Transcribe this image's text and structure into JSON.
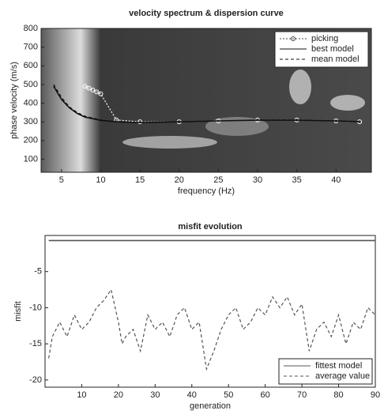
{
  "chart_data": [
    {
      "type": "line",
      "title": "velocity spectrum & dispersion curve",
      "xlabel": "frequency (Hz)",
      "ylabel": "phase velocity (m/s)",
      "xlim": [
        2.4,
        44.5
      ],
      "ylim": [
        30,
        800
      ],
      "xticks": [
        5,
        10,
        15,
        20,
        25,
        30,
        35,
        40
      ],
      "yticks": [
        100,
        200,
        300,
        400,
        500,
        600,
        700,
        800
      ],
      "legend": "upper right",
      "series": [
        {
          "name": "picking",
          "color": "#ffffff",
          "style": "marker",
          "x": [
            8,
            8.5,
            9,
            9.5,
            10,
            12,
            15,
            20,
            25,
            30,
            35,
            40,
            43
          ],
          "values": [
            490,
            480,
            470,
            460,
            450,
            310,
            300,
            300,
            305,
            310,
            310,
            305,
            300
          ]
        },
        {
          "name": "best model",
          "color": "#111111",
          "style": "solid",
          "x": [
            4,
            5,
            6,
            7,
            8,
            10,
            12,
            15,
            20,
            25,
            30,
            35,
            40,
            43
          ],
          "values": [
            490,
            420,
            375,
            345,
            325,
            308,
            300,
            296,
            300,
            305,
            309,
            309,
            305,
            301
          ]
        },
        {
          "name": "mean model",
          "color": "#111111",
          "style": "dashed",
          "x": [
            4,
            5,
            6,
            7,
            8,
            10,
            12,
            15,
            20,
            25,
            30,
            35,
            40,
            43
          ],
          "values": [
            500,
            430,
            380,
            350,
            330,
            310,
            300,
            295,
            300,
            305,
            310,
            310,
            305,
            300
          ]
        }
      ]
    },
    {
      "type": "line",
      "title": "misfit evolution",
      "xlabel": "generation",
      "ylabel": "misfit",
      "xlim": [
        0,
        90
      ],
      "ylim": [
        -21,
        0
      ],
      "xticks": [
        10,
        20,
        30,
        40,
        50,
        60,
        70,
        80,
        90
      ],
      "yticks": [
        -5,
        -10,
        -15,
        -20
      ],
      "legend": "lower right",
      "series": [
        {
          "name": "fittest model",
          "color": "#555555",
          "style": "solid",
          "x": [
            1,
            90
          ],
          "values": [
            -0.7,
            -0.7
          ]
        },
        {
          "name": "average value",
          "color": "#555555",
          "style": "dashed",
          "x": [
            1,
            2,
            4,
            6,
            8,
            10,
            12,
            14,
            16,
            18,
            20,
            21,
            22,
            24,
            26,
            28,
            30,
            32,
            34,
            36,
            38,
            40,
            42,
            44,
            46,
            48,
            50,
            52,
            54,
            56,
            58,
            60,
            62,
            64,
            66,
            68,
            70,
            72,
            74,
            76,
            78,
            80,
            82,
            84,
            86,
            88,
            90
          ],
          "values": [
            -17,
            -14,
            -12,
            -14,
            -11,
            -13,
            -12,
            -10,
            -9,
            -7.5,
            -12,
            -15,
            -14,
            -13,
            -16,
            -11,
            -13,
            -12,
            -14,
            -11,
            -10,
            -13,
            -12,
            -18.5,
            -16,
            -13,
            -11,
            -10,
            -13,
            -12,
            -10,
            -11,
            -8.5,
            -10,
            -8.5,
            -11,
            -9.5,
            -16,
            -13,
            -12,
            -14,
            -11,
            -15,
            -12,
            -13,
            -10,
            -11
          ]
        }
      ]
    }
  ]
}
